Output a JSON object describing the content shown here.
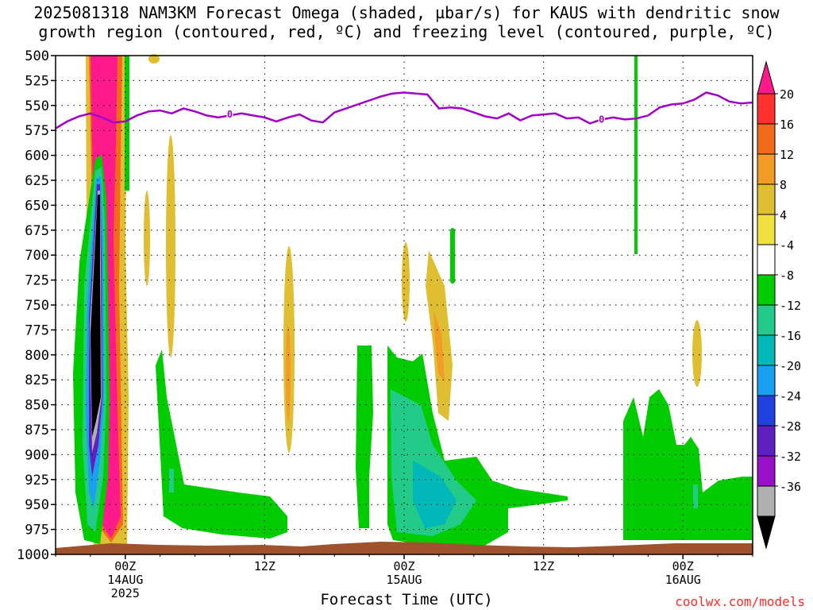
{
  "title": {
    "line1": "2025081318 NAM3KM Forecast Omega (shaded, µbar/s) for KAUS with dendritic snow",
    "line2": "growth region (contoured, red, ºC) and freezing level (contoured, purple, ºC)"
  },
  "footer": {
    "xaxis_title": "Forecast Time (UTC)",
    "credit": "coolwx.com/models"
  },
  "chart_data": {
    "type": "heatmap",
    "title": "2025081318 NAM3KM Forecast Omega (shaded, µbar/s) for KAUS with dendritic snow growth region (contoured, red, ºC) and freezing level (contoured, purple, ºC)",
    "xlabel": "Forecast Time (UTC)",
    "ylabel": "",
    "y_axis": {
      "scale": "pressure",
      "ticks": [
        500,
        525,
        550,
        575,
        600,
        625,
        650,
        675,
        700,
        725,
        750,
        775,
        800,
        825,
        850,
        875,
        900,
        925,
        950,
        975,
        1000
      ],
      "ylim": [
        1000,
        500
      ],
      "inverted": true
    },
    "x_axis": {
      "hours_range": [
        18,
        78
      ],
      "ticks": [
        {
          "hour": 24,
          "label": "00Z",
          "sub1": "14AUG",
          "sub2": "2025"
        },
        {
          "hour": 36,
          "label": "12Z",
          "sub1": "",
          "sub2": ""
        },
        {
          "hour": 48,
          "label": "00Z",
          "sub1": "15AUG",
          "sub2": ""
        },
        {
          "hour": 60,
          "label": "12Z",
          "sub1": "",
          "sub2": ""
        },
        {
          "hour": 72,
          "label": "00Z",
          "sub1": "16AUG",
          "sub2": ""
        }
      ]
    },
    "grid": true,
    "colorbar": {
      "levels": [
        20,
        16,
        12,
        8,
        4,
        -4,
        -8,
        -12,
        -16,
        -20,
        -24,
        -28,
        -32,
        -36
      ],
      "colors": [
        "#ff1a8c",
        "#ff3030",
        "#f26a1a",
        "#f29b25",
        "#e0be32",
        "#f0e040",
        "#ffffff",
        "#00cc00",
        "#22cc88",
        "#00b8b8",
        "#1aa0f0",
        "#2040e0",
        "#6020c0",
        "#9a10c8",
        "#b0b0b0",
        "#000000"
      ]
    },
    "freezing_level": {
      "label": "0",
      "hours": [
        18,
        19,
        20,
        21,
        22,
        23,
        24,
        25,
        26,
        27,
        28,
        29,
        30,
        31,
        32,
        33,
        34,
        35,
        36,
        37,
        38,
        39,
        40,
        41,
        42,
        43,
        44,
        45,
        46,
        47,
        48,
        49,
        50,
        51,
        52,
        53,
        54,
        55,
        56,
        57,
        58,
        59,
        60,
        61,
        62,
        63,
        64,
        65,
        66,
        67,
        68,
        69,
        70,
        71,
        72,
        73,
        74,
        75,
        76,
        77,
        78
      ],
      "pressure": [
        573,
        566,
        561,
        558,
        562,
        567,
        566,
        560,
        556,
        555,
        558,
        553,
        556,
        560,
        562,
        560,
        558,
        560,
        562,
        566,
        562,
        559,
        565,
        567,
        557,
        553,
        549,
        545,
        541,
        538,
        537,
        538,
        539,
        553,
        552,
        553,
        557,
        561,
        563,
        558,
        565,
        560,
        559,
        558,
        563,
        562,
        568,
        564,
        562,
        564,
        563,
        560,
        552,
        549,
        548,
        544,
        537,
        540,
        546,
        548,
        547
      ],
      "color": "#a000c8"
    },
    "ground": {
      "color": "#a0522d",
      "pressure_top": 990
    },
    "omega_regions": [
      {
        "name": "strong ascent core (black)",
        "value": -36
      },
      {
        "name": "strong descent core (pink)",
        "value": 20
      },
      {
        "name": "ascent near 16AUG 00Z (green)",
        "value": -4
      },
      {
        "name": "ascent near 15AUG 00Z (green/teal)",
        "value": -8
      }
    ]
  }
}
